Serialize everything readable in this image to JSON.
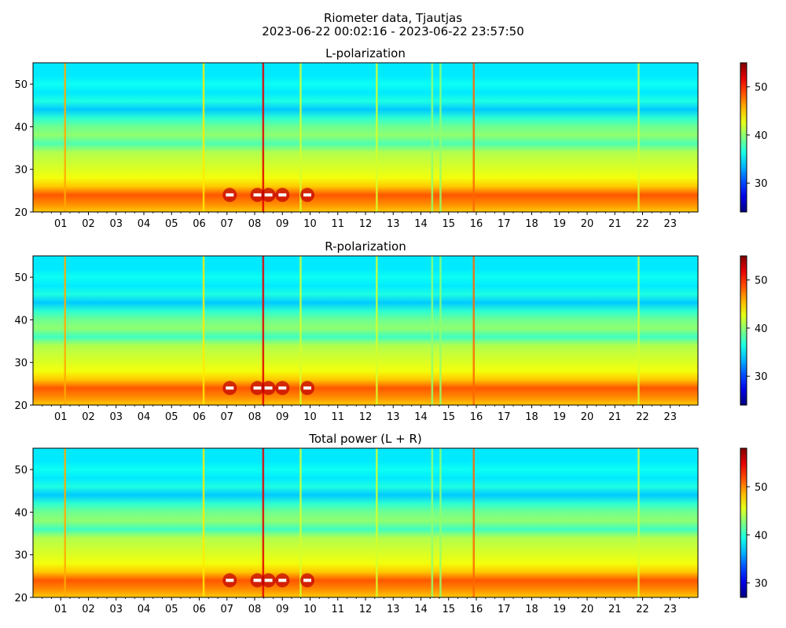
{
  "figure": {
    "title_line1": "Riometer data, Tjautjas",
    "title_line2": "2023-06-22 00:02:16 - 2023-06-22 23:57:50"
  },
  "chart_data": [
    {
      "type": "heatmap",
      "title": "L-polarization",
      "xlabel": "",
      "ylabel": "",
      "x_tick_labels": [
        "01",
        "02",
        "03",
        "04",
        "05",
        "06",
        "07",
        "08",
        "09",
        "10",
        "11",
        "12",
        "13",
        "14",
        "15",
        "16",
        "17",
        "18",
        "19",
        "20",
        "21",
        "22",
        "23"
      ],
      "xlim_hours": [
        0,
        24
      ],
      "ylim": [
        20,
        55
      ],
      "y_ticks": [
        20,
        30,
        40,
        50
      ],
      "colormap": "jet",
      "color_range": [
        24,
        55
      ],
      "colorbar_ticks": [
        30,
        40,
        50
      ],
      "background_profile": [
        {
          "y": 20,
          "value": 45
        },
        {
          "y": 22,
          "value": 47
        },
        {
          "y": 24,
          "value": 48.5
        },
        {
          "y": 26,
          "value": 45
        },
        {
          "y": 28,
          "value": 43
        },
        {
          "y": 31,
          "value": 42
        },
        {
          "y": 34,
          "value": 41
        },
        {
          "y": 36,
          "value": 38
        },
        {
          "y": 38,
          "value": 40
        },
        {
          "y": 40,
          "value": 39
        },
        {
          "y": 42,
          "value": 37
        },
        {
          "y": 44,
          "value": 34
        },
        {
          "y": 46,
          "value": 36.5
        },
        {
          "y": 48,
          "value": 35
        },
        {
          "y": 50,
          "value": 36
        },
        {
          "y": 52,
          "value": 35
        },
        {
          "y": 55,
          "value": 35
        }
      ],
      "vertical_features": [
        {
          "hour": 1.15,
          "value": 46
        },
        {
          "hour": 6.15,
          "value": 44
        },
        {
          "hour": 8.3,
          "value": 52
        },
        {
          "hour": 9.65,
          "value": 42
        },
        {
          "hour": 12.4,
          "value": 42
        },
        {
          "hour": 14.4,
          "value": 40
        },
        {
          "hour": 14.7,
          "value": 40
        },
        {
          "hour": 15.9,
          "value": 48
        },
        {
          "hour": 21.85,
          "value": 42
        }
      ],
      "saturated_points": [
        {
          "hour": 7.1,
          "y": 24
        },
        {
          "hour": 8.1,
          "y": 24
        },
        {
          "hour": 8.5,
          "y": 24
        },
        {
          "hour": 9.0,
          "y": 24
        },
        {
          "hour": 9.9,
          "y": 24
        }
      ]
    },
    {
      "type": "heatmap",
      "title": "R-polarization",
      "xlabel": "",
      "ylabel": "",
      "x_tick_labels": [
        "01",
        "02",
        "03",
        "04",
        "05",
        "06",
        "07",
        "08",
        "09",
        "10",
        "11",
        "12",
        "13",
        "14",
        "15",
        "16",
        "17",
        "18",
        "19",
        "20",
        "21",
        "22",
        "23"
      ],
      "xlim_hours": [
        0,
        24
      ],
      "ylim": [
        20,
        55
      ],
      "y_ticks": [
        20,
        30,
        40,
        50
      ],
      "colormap": "jet",
      "color_range": [
        24,
        55
      ],
      "colorbar_ticks": [
        30,
        40,
        50
      ],
      "background_profile": [
        {
          "y": 20,
          "value": 45
        },
        {
          "y": 22,
          "value": 47
        },
        {
          "y": 24,
          "value": 48.5
        },
        {
          "y": 26,
          "value": 45
        },
        {
          "y": 28,
          "value": 43
        },
        {
          "y": 31,
          "value": 42
        },
        {
          "y": 34,
          "value": 41
        },
        {
          "y": 36,
          "value": 37.5
        },
        {
          "y": 38,
          "value": 40
        },
        {
          "y": 40,
          "value": 39
        },
        {
          "y": 42,
          "value": 37
        },
        {
          "y": 44,
          "value": 34
        },
        {
          "y": 46,
          "value": 36.5
        },
        {
          "y": 48,
          "value": 35
        },
        {
          "y": 50,
          "value": 36
        },
        {
          "y": 52,
          "value": 35
        },
        {
          "y": 55,
          "value": 35
        }
      ],
      "vertical_features": [
        {
          "hour": 1.15,
          "value": 46
        },
        {
          "hour": 6.15,
          "value": 44
        },
        {
          "hour": 8.3,
          "value": 52
        },
        {
          "hour": 9.65,
          "value": 42
        },
        {
          "hour": 12.4,
          "value": 42
        },
        {
          "hour": 14.4,
          "value": 40
        },
        {
          "hour": 14.7,
          "value": 40
        },
        {
          "hour": 15.9,
          "value": 48
        },
        {
          "hour": 21.85,
          "value": 42
        }
      ],
      "saturated_points": [
        {
          "hour": 7.1,
          "y": 24
        },
        {
          "hour": 8.1,
          "y": 24
        },
        {
          "hour": 8.5,
          "y": 24
        },
        {
          "hour": 9.0,
          "y": 24
        },
        {
          "hour": 9.9,
          "y": 24
        }
      ]
    },
    {
      "type": "heatmap",
      "title": "Total power (L + R)",
      "xlabel": "",
      "ylabel": "",
      "x_tick_labels": [
        "01",
        "02",
        "03",
        "04",
        "05",
        "06",
        "07",
        "08",
        "09",
        "10",
        "11",
        "12",
        "13",
        "14",
        "15",
        "16",
        "17",
        "18",
        "19",
        "20",
        "21",
        "22",
        "23"
      ],
      "xlim_hours": [
        0,
        24
      ],
      "ylim": [
        20,
        55
      ],
      "y_ticks": [
        20,
        30,
        40,
        50
      ],
      "colormap": "jet",
      "color_range": [
        27,
        58
      ],
      "colorbar_ticks": [
        30,
        40,
        50
      ],
      "background_profile": [
        {
          "y": 20,
          "value": 48
        },
        {
          "y": 22,
          "value": 50
        },
        {
          "y": 24,
          "value": 51.5
        },
        {
          "y": 26,
          "value": 48
        },
        {
          "y": 28,
          "value": 46
        },
        {
          "y": 31,
          "value": 45
        },
        {
          "y": 34,
          "value": 44
        },
        {
          "y": 36,
          "value": 40.5
        },
        {
          "y": 38,
          "value": 43
        },
        {
          "y": 40,
          "value": 42
        },
        {
          "y": 42,
          "value": 40
        },
        {
          "y": 44,
          "value": 37
        },
        {
          "y": 46,
          "value": 39.5
        },
        {
          "y": 48,
          "value": 38
        },
        {
          "y": 50,
          "value": 39
        },
        {
          "y": 52,
          "value": 38
        },
        {
          "y": 55,
          "value": 38
        }
      ],
      "vertical_features": [
        {
          "hour": 1.15,
          "value": 49
        },
        {
          "hour": 6.15,
          "value": 47
        },
        {
          "hour": 8.3,
          "value": 55
        },
        {
          "hour": 9.65,
          "value": 45
        },
        {
          "hour": 12.4,
          "value": 45
        },
        {
          "hour": 14.4,
          "value": 43
        },
        {
          "hour": 14.7,
          "value": 43
        },
        {
          "hour": 15.9,
          "value": 51
        },
        {
          "hour": 21.85,
          "value": 45
        }
      ],
      "saturated_points": [
        {
          "hour": 7.1,
          "y": 24
        },
        {
          "hour": 8.1,
          "y": 24
        },
        {
          "hour": 8.5,
          "y": 24
        },
        {
          "hour": 9.0,
          "y": 24
        },
        {
          "hour": 9.9,
          "y": 24
        }
      ]
    }
  ]
}
